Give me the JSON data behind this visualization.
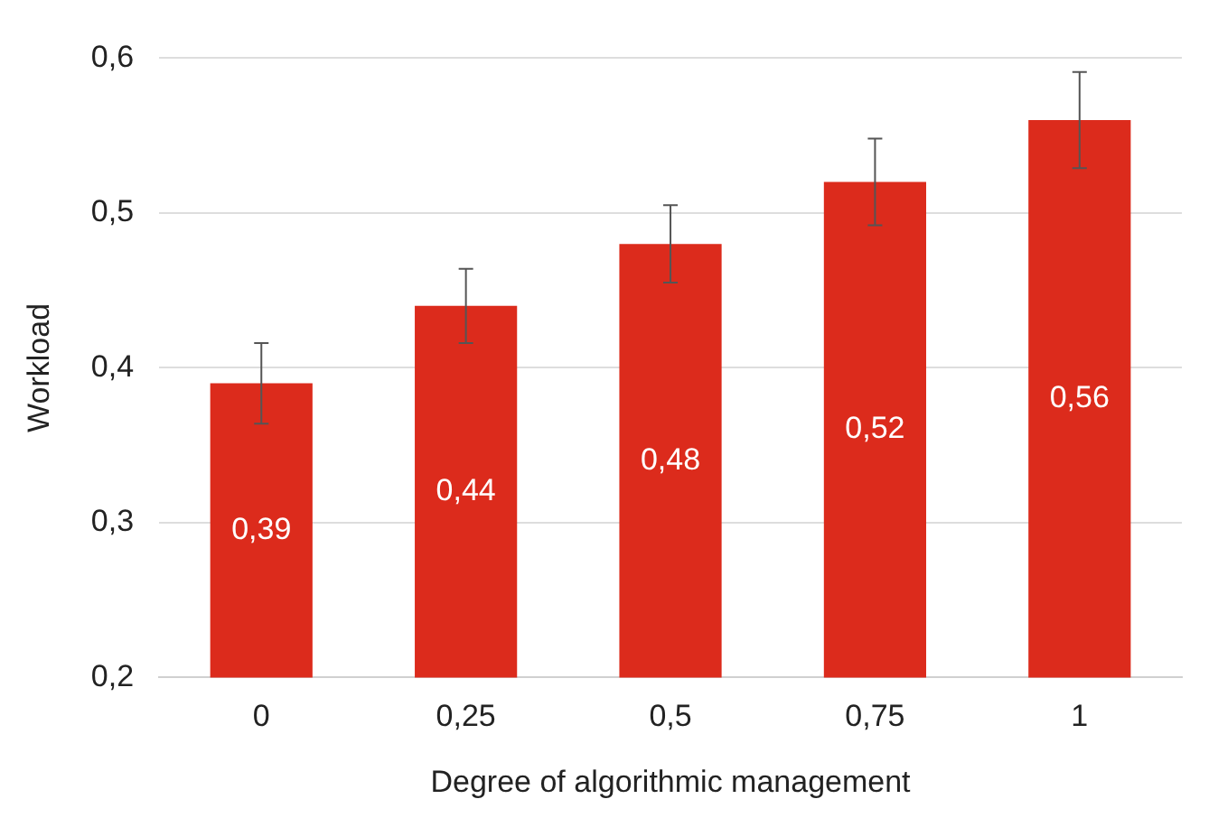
{
  "chart_data": {
    "type": "bar",
    "xlabel": "Degree of algorithmic management",
    "ylabel": "Workload",
    "categories": [
      "0",
      "0,25",
      "0,5",
      "0,75",
      "1"
    ],
    "values": [
      0.39,
      0.44,
      0.48,
      0.52,
      0.56
    ],
    "value_labels": [
      "0,39",
      "0,44",
      "0,48",
      "0,52",
      "0,56"
    ],
    "errors": [
      0.026,
      0.024,
      0.025,
      0.028,
      0.031
    ],
    "color": "#dc2b1c",
    "ylim": [
      0.2,
      0.6
    ],
    "yticks": [
      {
        "value": 0.2,
        "label": "0,2"
      },
      {
        "value": 0.3,
        "label": "0,3"
      },
      {
        "value": 0.4,
        "label": "0,4"
      },
      {
        "value": 0.5,
        "label": "0,5"
      },
      {
        "value": 0.6,
        "label": "0,6"
      }
    ],
    "grid": "y",
    "legend": false
  }
}
